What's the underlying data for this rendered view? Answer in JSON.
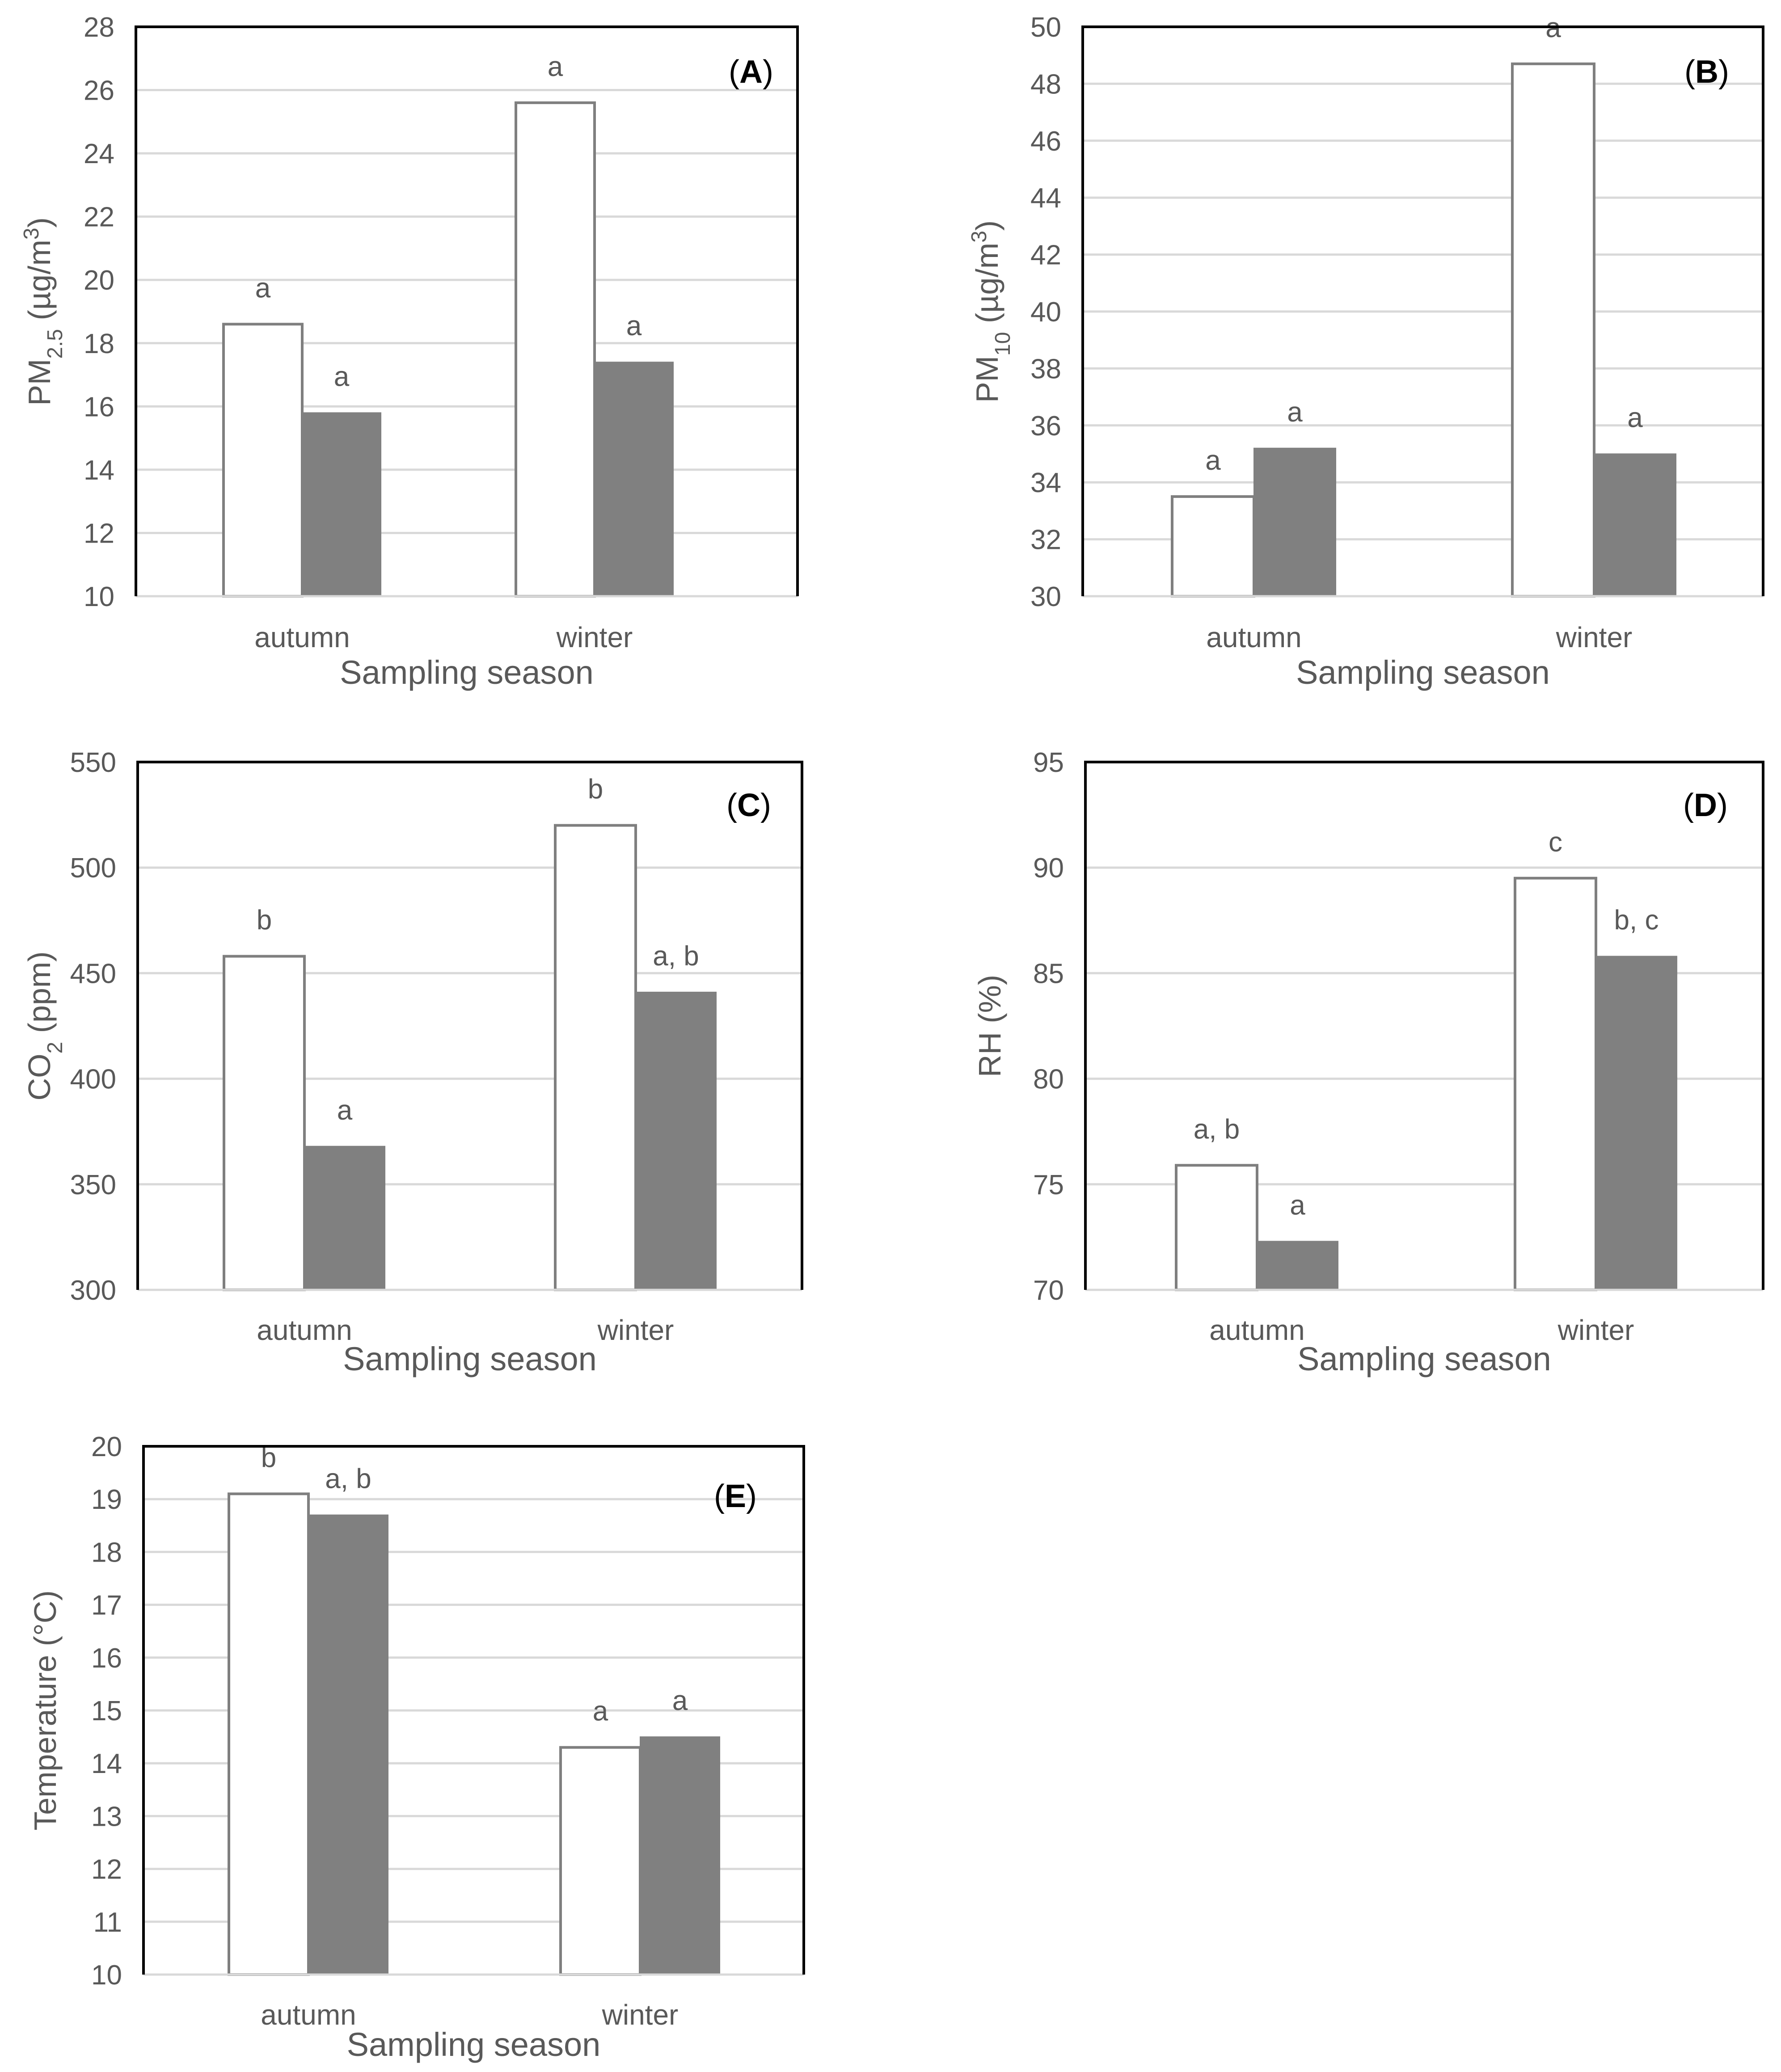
{
  "colors": {
    "series_open_fill": "#ffffff",
    "series_open_stroke": "#7f7f7f",
    "series_filled": "#808080",
    "text": "#595959",
    "gridline": "#d9d9d9",
    "frame": "#000000"
  },
  "chart_data": [
    {
      "panel": "(A)",
      "type": "bar",
      "xlabel": "Sampling season",
      "ylabel": "PM2.5 (µg/m3)",
      "ylabel_parts": {
        "base": "PM",
        "sub": "2.5",
        "unit_pre": " (µg/m",
        "sup": "3",
        "unit_post": ")"
      },
      "categories": [
        "autumn",
        "winter"
      ],
      "ylim": [
        10,
        28
      ],
      "yticks": [
        10,
        12,
        14,
        16,
        18,
        20,
        22,
        24,
        26,
        28
      ],
      "series": [
        {
          "name": "open",
          "style": "open",
          "values": [
            18.6,
            25.6
          ],
          "labels": [
            "a",
            "a"
          ]
        },
        {
          "name": "filled",
          "style": "filled",
          "values": [
            15.8,
            17.4
          ],
          "labels": [
            "a",
            "a"
          ]
        }
      ]
    },
    {
      "panel": "(B)",
      "type": "bar",
      "xlabel": "Sampling season",
      "ylabel": "PM10 (µg/m3)",
      "ylabel_parts": {
        "base": "PM",
        "sub": "10",
        "unit_pre": " (µg/m",
        "sup": "3",
        "unit_post": ")"
      },
      "categories": [
        "autumn",
        "winter"
      ],
      "ylim": [
        30,
        50
      ],
      "yticks": [
        30,
        32,
        34,
        36,
        38,
        40,
        42,
        44,
        46,
        48,
        50
      ],
      "series": [
        {
          "name": "open",
          "style": "open",
          "values": [
            33.5,
            48.7
          ],
          "labels": [
            "a",
            "a"
          ]
        },
        {
          "name": "filled",
          "style": "filled",
          "values": [
            35.2,
            35.0
          ],
          "labels": [
            "a",
            "a"
          ]
        }
      ]
    },
    {
      "panel": "(C)",
      "type": "bar",
      "xlabel": "Sampling season",
      "ylabel": "CO2 (ppm)",
      "ylabel_parts": {
        "base": "CO",
        "sub": "2",
        "unit_pre": " (ppm)",
        "sup": "",
        "unit_post": ""
      },
      "categories": [
        "autumn",
        "winter"
      ],
      "ylim": [
        300,
        550
      ],
      "yticks": [
        300,
        350,
        400,
        450,
        500,
        550
      ],
      "series": [
        {
          "name": "open",
          "style": "open",
          "values": [
            458,
            520
          ],
          "labels": [
            "b",
            "b"
          ]
        },
        {
          "name": "filled",
          "style": "filled",
          "values": [
            368,
            441
          ],
          "labels": [
            "a",
            "a, b"
          ]
        }
      ]
    },
    {
      "panel": "(D)",
      "type": "bar",
      "xlabel": "Sampling season",
      "ylabel": "RH (%)",
      "ylabel_parts": {
        "base": "RH (%)",
        "sub": "",
        "unit_pre": "",
        "sup": "",
        "unit_post": ""
      },
      "categories": [
        "autumn",
        "winter"
      ],
      "ylim": [
        70,
        95
      ],
      "yticks": [
        70,
        75,
        80,
        85,
        90,
        95
      ],
      "series": [
        {
          "name": "open",
          "style": "open",
          "values": [
            75.9,
            89.5
          ],
          "labels": [
            "a, b",
            "c"
          ]
        },
        {
          "name": "filled",
          "style": "filled",
          "values": [
            72.3,
            85.8
          ],
          "labels": [
            "a",
            "b, c"
          ]
        }
      ]
    },
    {
      "panel": "(E)",
      "type": "bar",
      "xlabel": "Sampling season",
      "ylabel": "Temperature (°C)",
      "ylabel_parts": {
        "base": "Temperature (°C)",
        "sub": "",
        "unit_pre": "",
        "sup": "",
        "unit_post": ""
      },
      "categories": [
        "autumn",
        "winter"
      ],
      "ylim": [
        10,
        20
      ],
      "yticks": [
        10,
        11,
        12,
        13,
        14,
        15,
        16,
        17,
        18,
        19,
        20
      ],
      "series": [
        {
          "name": "open",
          "style": "open",
          "values": [
            19.1,
            14.3
          ],
          "labels": [
            "b",
            "a"
          ]
        },
        {
          "name": "filled",
          "style": "filled",
          "values": [
            18.7,
            14.5
          ],
          "labels": [
            "a, b",
            "a"
          ]
        }
      ]
    }
  ]
}
